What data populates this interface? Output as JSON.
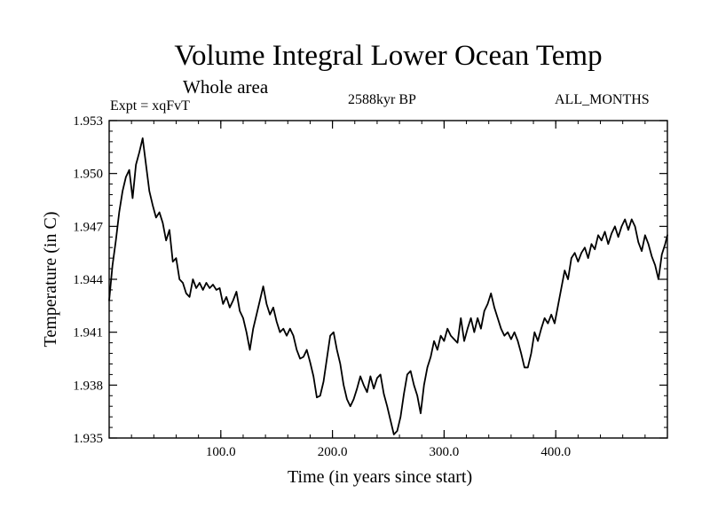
{
  "chart_data": {
    "type": "line",
    "title": "Volume Integral Lower Ocean Temp",
    "subtitle": "Whole area",
    "left_label": "Expt = xqFvT",
    "center_label": "2588kyr BP",
    "right_label": "ALL_MONTHS",
    "xlabel": "Time (in years since start)",
    "ylabel": "Temperature (in C)",
    "xlim": [
      0,
      500
    ],
    "ylim": [
      1.935,
      1.953
    ],
    "xticks": [
      100,
      200,
      300,
      400
    ],
    "xtick_labels": [
      "100.0",
      "200.0",
      "300.0",
      "400.0"
    ],
    "yticks": [
      1.935,
      1.938,
      1.941,
      1.944,
      1.947,
      1.95,
      1.953
    ],
    "ytick_labels": [
      "1.935",
      "1.938",
      "1.941",
      "1.944",
      "1.947",
      "1.950",
      "1.953"
    ],
    "grid": false,
    "series": [
      {
        "name": "Temperature",
        "color": "#000000",
        "x": [
          0,
          3,
          6,
          9,
          12,
          15,
          18,
          21,
          24,
          27,
          30,
          33,
          36,
          39,
          42,
          45,
          48,
          51,
          54,
          57,
          60,
          63,
          66,
          69,
          72,
          75,
          78,
          81,
          84,
          87,
          90,
          93,
          96,
          99,
          102,
          105,
          108,
          111,
          114,
          117,
          120,
          123,
          126,
          129,
          132,
          135,
          138,
          141,
          144,
          147,
          150,
          153,
          156,
          159,
          162,
          165,
          168,
          171,
          174,
          177,
          180,
          183,
          186,
          189,
          192,
          195,
          198,
          201,
          204,
          207,
          210,
          213,
          216,
          219,
          222,
          225,
          228,
          231,
          234,
          237,
          240,
          243,
          246,
          249,
          252,
          255,
          258,
          261,
          264,
          267,
          270,
          273,
          276,
          279,
          282,
          285,
          288,
          291,
          294,
          297,
          300,
          303,
          306,
          309,
          312,
          315,
          318,
          321,
          324,
          327,
          330,
          333,
          336,
          339,
          342,
          345,
          348,
          351,
          354,
          357,
          360,
          363,
          366,
          369,
          372,
          375,
          378,
          381,
          384,
          387,
          390,
          393,
          396,
          399,
          402,
          405,
          408,
          411,
          414,
          417,
          420,
          423,
          426,
          429,
          432,
          435,
          438,
          441,
          444,
          447,
          450,
          453,
          456,
          459,
          462,
          465,
          468,
          471,
          474,
          477,
          480,
          483,
          486,
          489,
          492,
          495,
          498,
          500
        ],
        "values": [
          1.9428,
          1.9448,
          1.9462,
          1.9478,
          1.949,
          1.9498,
          1.9502,
          1.9486,
          1.9505,
          1.9512,
          1.952,
          1.9505,
          1.949,
          1.9482,
          1.9475,
          1.9478,
          1.9472,
          1.9462,
          1.9468,
          1.945,
          1.9452,
          1.944,
          1.9438,
          1.9432,
          1.943,
          1.944,
          1.9435,
          1.9438,
          1.9434,
          1.9438,
          1.9435,
          1.9437,
          1.9434,
          1.9435,
          1.9426,
          1.943,
          1.9424,
          1.9428,
          1.9433,
          1.9422,
          1.9418,
          1.941,
          1.94,
          1.9412,
          1.942,
          1.9428,
          1.9436,
          1.9426,
          1.942,
          1.9424,
          1.9416,
          1.941,
          1.9412,
          1.9408,
          1.9412,
          1.9408,
          1.94,
          1.9395,
          1.9396,
          1.94,
          1.9393,
          1.9385,
          1.9373,
          1.9374,
          1.9382,
          1.9395,
          1.9408,
          1.941,
          1.94,
          1.9392,
          1.938,
          1.9372,
          1.9368,
          1.9372,
          1.9378,
          1.9385,
          1.938,
          1.9376,
          1.9385,
          1.9378,
          1.9384,
          1.9386,
          1.9375,
          1.9368,
          1.936,
          1.9352,
          1.9354,
          1.9362,
          1.9375,
          1.9386,
          1.9388,
          1.938,
          1.9374,
          1.9364,
          1.938,
          1.939,
          1.9396,
          1.9405,
          1.94,
          1.9408,
          1.9405,
          1.9412,
          1.9408,
          1.9406,
          1.9404,
          1.9418,
          1.9405,
          1.9412,
          1.9418,
          1.941,
          1.9418,
          1.9412,
          1.9422,
          1.9426,
          1.9432,
          1.9424,
          1.9418,
          1.9412,
          1.9408,
          1.941,
          1.9406,
          1.941,
          1.9405,
          1.9398,
          1.939,
          1.939,
          1.9398,
          1.941,
          1.9405,
          1.9412,
          1.9418,
          1.9415,
          1.942,
          1.9415,
          1.9425,
          1.9435,
          1.9445,
          1.944,
          1.9452,
          1.9455,
          1.945,
          1.9455,
          1.9458,
          1.9452,
          1.946,
          1.9457,
          1.9465,
          1.9462,
          1.9467,
          1.946,
          1.9466,
          1.947,
          1.9464,
          1.947,
          1.9474,
          1.9468,
          1.9474,
          1.947,
          1.9461,
          1.9456,
          1.9465,
          1.946,
          1.9453,
          1.9448,
          1.944,
          1.9454,
          1.946,
          1.9465
        ]
      }
    ]
  }
}
